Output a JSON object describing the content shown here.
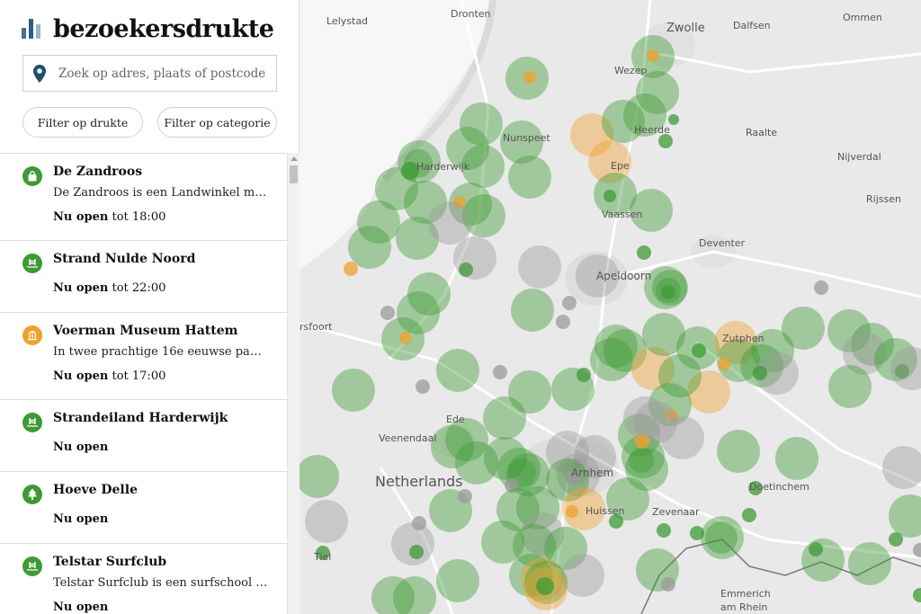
{
  "brand": {
    "name": "bezoekersdrukte",
    "icon": "bar-chart-icon"
  },
  "search": {
    "placeholder": "Zoek op adres, plaats of postcode",
    "icon": "map-pin-icon"
  },
  "filters": {
    "drukte_label": "Filter op drukte",
    "categorie_label": "Filter op categorie"
  },
  "colors": {
    "green": "#3d9a35",
    "orange": "#f0a02a",
    "grey": "#9a9a9a",
    "brand": "#2b5f88"
  },
  "list": [
    {
      "title": "De Zandroos",
      "desc": "De Zandroos is een Landwinkel me…",
      "status": "Nu open",
      "status_suffix": "tot 18:00",
      "icon": "shopping-bag-icon",
      "color": "green"
    },
    {
      "title": "Strand Nulde Noord",
      "desc": "",
      "status": "Nu open",
      "status_suffix": "tot 22:00",
      "icon": "swimming-icon",
      "color": "green"
    },
    {
      "title": "Voerman Museum Hattem",
      "desc": "In twee prachtige 16e eeuwse pan…",
      "status": "Nu open",
      "status_suffix": "tot 17:00",
      "icon": "museum-icon",
      "color": "orange"
    },
    {
      "title": "Strandeiland Harderwijk",
      "desc": "",
      "status": "Nu open",
      "status_suffix": "",
      "icon": "swimming-icon",
      "color": "green"
    },
    {
      "title": "Hoeve Delle",
      "desc": "",
      "status": "Nu open",
      "status_suffix": "",
      "icon": "tree-icon",
      "color": "green"
    },
    {
      "title": "Telstar Surfclub",
      "desc": "Telstar Surfclub is een surfschool e…",
      "status": "Nu open",
      "status_suffix": "",
      "icon": "swimming-icon",
      "color": "green"
    }
  ],
  "map": {
    "places": [
      "Lelystad",
      "Dronten",
      "Zwolle",
      "Dalfsen",
      "Ommen",
      "Wezep",
      "Heerde",
      "Raalte",
      "Nunspeet",
      "Harderwijk",
      "Epe",
      "Nijverdal",
      "Vaassen",
      "Rijssen",
      "Deventer",
      "Apeldoorn",
      "rsfoort",
      "Zutphen",
      "Ede",
      "Veenendaal",
      "Netherlands",
      "Arnhem",
      "Doetinchem",
      "Huissen",
      "Zevenaar",
      "Tiel",
      "Emmerich",
      "am Rhein"
    ]
  }
}
